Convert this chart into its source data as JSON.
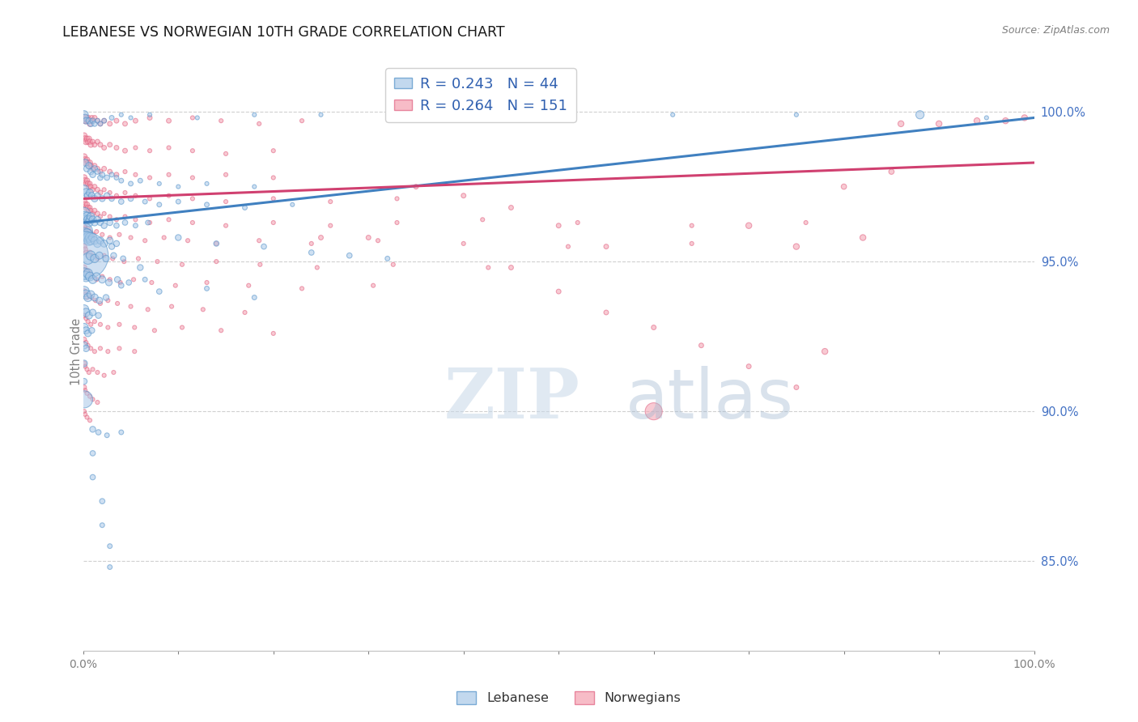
{
  "title": "LEBANESE VS NORWEGIAN 10TH GRADE CORRELATION CHART",
  "source": "Source: ZipAtlas.com",
  "ylabel": "10th Grade",
  "right_yticks": [
    85.0,
    90.0,
    95.0,
    100.0
  ],
  "blue_R": 0.243,
  "blue_N": 44,
  "pink_R": 0.264,
  "pink_N": 151,
  "blue_color": "#a8c8e8",
  "pink_color": "#f4a0b0",
  "blue_edge_color": "#5090c8",
  "pink_edge_color": "#e06080",
  "blue_line_color": "#4080c0",
  "pink_line_color": "#d04070",
  "watermark_zip": "ZIP",
  "watermark_atlas": "atlas",
  "legend_label_blue": "Lebanese",
  "legend_label_pink": "Norwegians",
  "xlim": [
    0.0,
    1.0
  ],
  "ylim": [
    0.82,
    1.02
  ],
  "blue_trend": [
    0.0,
    1.0,
    0.963,
    0.998
  ],
  "pink_trend": [
    0.0,
    1.0,
    0.971,
    0.983
  ],
  "blue_points": [
    [
      0.001,
      0.999,
      12
    ],
    [
      0.002,
      0.998,
      10
    ],
    [
      0.003,
      0.997,
      9
    ],
    [
      0.006,
      0.997,
      8
    ],
    [
      0.008,
      0.996,
      8
    ],
    [
      0.01,
      0.997,
      7
    ],
    [
      0.012,
      0.996,
      7
    ],
    [
      0.015,
      0.997,
      6
    ],
    [
      0.018,
      0.996,
      6
    ],
    [
      0.022,
      0.997,
      6
    ],
    [
      0.03,
      0.998,
      6
    ],
    [
      0.04,
      0.999,
      5
    ],
    [
      0.05,
      0.998,
      5
    ],
    [
      0.07,
      0.999,
      5
    ],
    [
      0.12,
      0.998,
      5
    ],
    [
      0.18,
      0.999,
      5
    ],
    [
      0.25,
      0.999,
      5
    ],
    [
      0.35,
      0.999,
      5
    ],
    [
      0.5,
      0.999,
      5
    ],
    [
      0.62,
      0.999,
      5
    ],
    [
      0.75,
      0.999,
      5
    ],
    [
      0.88,
      0.999,
      12
    ],
    [
      0.95,
      0.998,
      5
    ],
    [
      0.002,
      0.983,
      10
    ],
    [
      0.004,
      0.981,
      9
    ],
    [
      0.006,
      0.982,
      9
    ],
    [
      0.008,
      0.98,
      8
    ],
    [
      0.01,
      0.979,
      8
    ],
    [
      0.012,
      0.981,
      8
    ],
    [
      0.015,
      0.98,
      7
    ],
    [
      0.018,
      0.978,
      7
    ],
    [
      0.02,
      0.979,
      7
    ],
    [
      0.025,
      0.978,
      7
    ],
    [
      0.03,
      0.979,
      6
    ],
    [
      0.035,
      0.978,
      6
    ],
    [
      0.04,
      0.977,
      6
    ],
    [
      0.05,
      0.976,
      6
    ],
    [
      0.06,
      0.977,
      6
    ],
    [
      0.08,
      0.976,
      5
    ],
    [
      0.1,
      0.975,
      5
    ],
    [
      0.13,
      0.976,
      5
    ],
    [
      0.18,
      0.975,
      5
    ],
    [
      0.001,
      0.974,
      14
    ],
    [
      0.003,
      0.973,
      12
    ],
    [
      0.005,
      0.972,
      10
    ],
    [
      0.007,
      0.973,
      10
    ],
    [
      0.009,
      0.972,
      9
    ],
    [
      0.012,
      0.971,
      9
    ],
    [
      0.015,
      0.972,
      8
    ],
    [
      0.02,
      0.971,
      8
    ],
    [
      0.025,
      0.972,
      8
    ],
    [
      0.03,
      0.971,
      7
    ],
    [
      0.04,
      0.97,
      7
    ],
    [
      0.05,
      0.971,
      7
    ],
    [
      0.065,
      0.97,
      6
    ],
    [
      0.08,
      0.969,
      6
    ],
    [
      0.1,
      0.97,
      6
    ],
    [
      0.13,
      0.969,
      6
    ],
    [
      0.17,
      0.968,
      6
    ],
    [
      0.22,
      0.969,
      5
    ],
    [
      0.001,
      0.966,
      20
    ],
    [
      0.002,
      0.965,
      16
    ],
    [
      0.003,
      0.964,
      14
    ],
    [
      0.004,
      0.965,
      13
    ],
    [
      0.005,
      0.964,
      12
    ],
    [
      0.006,
      0.963,
      12
    ],
    [
      0.007,
      0.964,
      11
    ],
    [
      0.008,
      0.965,
      11
    ],
    [
      0.01,
      0.964,
      10
    ],
    [
      0.012,
      0.963,
      9
    ],
    [
      0.015,
      0.964,
      9
    ],
    [
      0.018,
      0.963,
      8
    ],
    [
      0.022,
      0.962,
      8
    ],
    [
      0.028,
      0.963,
      8
    ],
    [
      0.035,
      0.962,
      7
    ],
    [
      0.044,
      0.963,
      7
    ],
    [
      0.055,
      0.962,
      6
    ],
    [
      0.068,
      0.963,
      6
    ],
    [
      0.001,
      0.96,
      30
    ],
    [
      0.002,
      0.959,
      22
    ],
    [
      0.003,
      0.958,
      20
    ],
    [
      0.004,
      0.959,
      18
    ],
    [
      0.005,
      0.958,
      16
    ],
    [
      0.006,
      0.957,
      15
    ],
    [
      0.007,
      0.958,
      14
    ],
    [
      0.008,
      0.957,
      13
    ],
    [
      0.01,
      0.958,
      12
    ],
    [
      0.012,
      0.957,
      11
    ],
    [
      0.015,
      0.956,
      11
    ],
    [
      0.018,
      0.957,
      10
    ],
    [
      0.022,
      0.956,
      10
    ],
    [
      0.028,
      0.957,
      9
    ],
    [
      0.035,
      0.956,
      8
    ],
    [
      0.001,
      0.952,
      110
    ],
    [
      0.005,
      0.951,
      18
    ],
    [
      0.008,
      0.952,
      14
    ],
    [
      0.012,
      0.951,
      12
    ],
    [
      0.017,
      0.952,
      10
    ],
    [
      0.024,
      0.951,
      9
    ],
    [
      0.032,
      0.952,
      8
    ],
    [
      0.042,
      0.951,
      7
    ],
    [
      0.001,
      0.946,
      18
    ],
    [
      0.003,
      0.945,
      16
    ],
    [
      0.005,
      0.946,
      14
    ],
    [
      0.007,
      0.945,
      13
    ],
    [
      0.01,
      0.944,
      12
    ],
    [
      0.014,
      0.945,
      11
    ],
    [
      0.02,
      0.944,
      10
    ],
    [
      0.027,
      0.943,
      9
    ],
    [
      0.036,
      0.944,
      8
    ],
    [
      0.048,
      0.943,
      7
    ],
    [
      0.065,
      0.944,
      6
    ],
    [
      0.001,
      0.94,
      16
    ],
    [
      0.003,
      0.939,
      14
    ],
    [
      0.005,
      0.938,
      12
    ],
    [
      0.008,
      0.939,
      11
    ],
    [
      0.012,
      0.938,
      10
    ],
    [
      0.017,
      0.937,
      9
    ],
    [
      0.024,
      0.938,
      8
    ],
    [
      0.001,
      0.934,
      14
    ],
    [
      0.003,
      0.933,
      12
    ],
    [
      0.006,
      0.932,
      10
    ],
    [
      0.01,
      0.933,
      9
    ],
    [
      0.016,
      0.932,
      8
    ],
    [
      0.001,
      0.928,
      12
    ],
    [
      0.003,
      0.927,
      10
    ],
    [
      0.005,
      0.926,
      9
    ],
    [
      0.009,
      0.927,
      8
    ],
    [
      0.001,
      0.922,
      10
    ],
    [
      0.003,
      0.921,
      9
    ],
    [
      0.001,
      0.916,
      9
    ],
    [
      0.001,
      0.91,
      8
    ],
    [
      0.001,
      0.904,
      30
    ],
    [
      0.03,
      0.955,
      8
    ],
    [
      0.06,
      0.948,
      8
    ],
    [
      0.1,
      0.958,
      8
    ],
    [
      0.14,
      0.956,
      7
    ],
    [
      0.19,
      0.955,
      7
    ],
    [
      0.04,
      0.942,
      7
    ],
    [
      0.08,
      0.94,
      7
    ],
    [
      0.13,
      0.941,
      6
    ],
    [
      0.18,
      0.938,
      6
    ],
    [
      0.24,
      0.953,
      7
    ],
    [
      0.28,
      0.952,
      7
    ],
    [
      0.32,
      0.951,
      6
    ],
    [
      0.01,
      0.894,
      8
    ],
    [
      0.016,
      0.893,
      7
    ],
    [
      0.025,
      0.892,
      6
    ],
    [
      0.04,
      0.893,
      6
    ],
    [
      0.01,
      0.886,
      7
    ],
    [
      0.01,
      0.878,
      7
    ],
    [
      0.02,
      0.87,
      7
    ],
    [
      0.02,
      0.862,
      6
    ],
    [
      0.028,
      0.855,
      6
    ],
    [
      0.028,
      0.848,
      6
    ]
  ],
  "pink_points": [
    [
      0.001,
      0.998,
      8
    ],
    [
      0.002,
      0.997,
      8
    ],
    [
      0.003,
      0.998,
      7
    ],
    [
      0.004,
      0.997,
      7
    ],
    [
      0.005,
      0.998,
      7
    ],
    [
      0.006,
      0.997,
      7
    ],
    [
      0.007,
      0.996,
      7
    ],
    [
      0.008,
      0.997,
      6
    ],
    [
      0.009,
      0.998,
      6
    ],
    [
      0.01,
      0.997,
      6
    ],
    [
      0.012,
      0.998,
      6
    ],
    [
      0.015,
      0.997,
      6
    ],
    [
      0.018,
      0.996,
      6
    ],
    [
      0.022,
      0.997,
      6
    ],
    [
      0.028,
      0.996,
      6
    ],
    [
      0.035,
      0.997,
      6
    ],
    [
      0.044,
      0.996,
      6
    ],
    [
      0.055,
      0.997,
      6
    ],
    [
      0.07,
      0.998,
      6
    ],
    [
      0.09,
      0.997,
      6
    ],
    [
      0.115,
      0.998,
      5
    ],
    [
      0.145,
      0.997,
      5
    ],
    [
      0.185,
      0.996,
      5
    ],
    [
      0.23,
      0.997,
      5
    ],
    [
      0.001,
      0.992,
      8
    ],
    [
      0.002,
      0.991,
      8
    ],
    [
      0.003,
      0.99,
      8
    ],
    [
      0.004,
      0.991,
      7
    ],
    [
      0.005,
      0.99,
      7
    ],
    [
      0.006,
      0.991,
      7
    ],
    [
      0.007,
      0.99,
      7
    ],
    [
      0.008,
      0.989,
      7
    ],
    [
      0.01,
      0.99,
      6
    ],
    [
      0.012,
      0.989,
      6
    ],
    [
      0.015,
      0.99,
      6
    ],
    [
      0.018,
      0.989,
      6
    ],
    [
      0.022,
      0.988,
      6
    ],
    [
      0.028,
      0.989,
      6
    ],
    [
      0.035,
      0.988,
      6
    ],
    [
      0.044,
      0.987,
      6
    ],
    [
      0.055,
      0.988,
      5
    ],
    [
      0.07,
      0.987,
      5
    ],
    [
      0.09,
      0.988,
      5
    ],
    [
      0.115,
      0.987,
      5
    ],
    [
      0.15,
      0.986,
      5
    ],
    [
      0.2,
      0.987,
      5
    ],
    [
      0.001,
      0.985,
      8
    ],
    [
      0.002,
      0.984,
      8
    ],
    [
      0.003,
      0.983,
      8
    ],
    [
      0.004,
      0.984,
      7
    ],
    [
      0.005,
      0.983,
      7
    ],
    [
      0.006,
      0.982,
      7
    ],
    [
      0.007,
      0.983,
      7
    ],
    [
      0.008,
      0.982,
      7
    ],
    [
      0.01,
      0.981,
      6
    ],
    [
      0.012,
      0.982,
      6
    ],
    [
      0.015,
      0.981,
      6
    ],
    [
      0.018,
      0.98,
      6
    ],
    [
      0.022,
      0.981,
      6
    ],
    [
      0.028,
      0.98,
      6
    ],
    [
      0.035,
      0.979,
      6
    ],
    [
      0.044,
      0.98,
      5
    ],
    [
      0.055,
      0.979,
      5
    ],
    [
      0.07,
      0.978,
      5
    ],
    [
      0.09,
      0.979,
      5
    ],
    [
      0.115,
      0.978,
      5
    ],
    [
      0.15,
      0.979,
      5
    ],
    [
      0.2,
      0.978,
      5
    ],
    [
      0.001,
      0.978,
      8
    ],
    [
      0.002,
      0.977,
      8
    ],
    [
      0.003,
      0.976,
      7
    ],
    [
      0.004,
      0.977,
      7
    ],
    [
      0.005,
      0.976,
      7
    ],
    [
      0.006,
      0.975,
      7
    ],
    [
      0.007,
      0.976,
      6
    ],
    [
      0.008,
      0.975,
      6
    ],
    [
      0.01,
      0.974,
      6
    ],
    [
      0.012,
      0.975,
      6
    ],
    [
      0.015,
      0.974,
      6
    ],
    [
      0.018,
      0.973,
      6
    ],
    [
      0.022,
      0.974,
      5
    ],
    [
      0.028,
      0.973,
      5
    ],
    [
      0.035,
      0.972,
      5
    ],
    [
      0.044,
      0.973,
      5
    ],
    [
      0.055,
      0.972,
      5
    ],
    [
      0.07,
      0.971,
      5
    ],
    [
      0.09,
      0.972,
      5
    ],
    [
      0.115,
      0.971,
      5
    ],
    [
      0.15,
      0.97,
      5
    ],
    [
      0.2,
      0.971,
      5
    ],
    [
      0.26,
      0.97,
      5
    ],
    [
      0.33,
      0.971,
      5
    ],
    [
      0.001,
      0.97,
      8
    ],
    [
      0.002,
      0.969,
      8
    ],
    [
      0.003,
      0.968,
      7
    ],
    [
      0.004,
      0.969,
      7
    ],
    [
      0.005,
      0.968,
      7
    ],
    [
      0.006,
      0.967,
      7
    ],
    [
      0.007,
      0.968,
      6
    ],
    [
      0.008,
      0.967,
      6
    ],
    [
      0.01,
      0.966,
      6
    ],
    [
      0.012,
      0.967,
      6
    ],
    [
      0.015,
      0.966,
      6
    ],
    [
      0.018,
      0.965,
      5
    ],
    [
      0.022,
      0.966,
      5
    ],
    [
      0.028,
      0.965,
      5
    ],
    [
      0.035,
      0.964,
      5
    ],
    [
      0.044,
      0.965,
      5
    ],
    [
      0.055,
      0.964,
      5
    ],
    [
      0.07,
      0.963,
      5
    ],
    [
      0.09,
      0.964,
      5
    ],
    [
      0.115,
      0.963,
      5
    ],
    [
      0.15,
      0.962,
      5
    ],
    [
      0.2,
      0.963,
      5
    ],
    [
      0.26,
      0.962,
      5
    ],
    [
      0.33,
      0.963,
      5
    ],
    [
      0.42,
      0.964,
      5
    ],
    [
      0.52,
      0.963,
      5
    ],
    [
      0.64,
      0.962,
      5
    ],
    [
      0.76,
      0.963,
      5
    ],
    [
      0.001,
      0.962,
      8
    ],
    [
      0.002,
      0.961,
      7
    ],
    [
      0.003,
      0.96,
      7
    ],
    [
      0.005,
      0.961,
      6
    ],
    [
      0.007,
      0.96,
      6
    ],
    [
      0.01,
      0.959,
      6
    ],
    [
      0.014,
      0.96,
      5
    ],
    [
      0.02,
      0.959,
      5
    ],
    [
      0.028,
      0.958,
      5
    ],
    [
      0.038,
      0.959,
      5
    ],
    [
      0.05,
      0.958,
      5
    ],
    [
      0.065,
      0.957,
      5
    ],
    [
      0.085,
      0.958,
      5
    ],
    [
      0.11,
      0.957,
      5
    ],
    [
      0.14,
      0.956,
      5
    ],
    [
      0.185,
      0.957,
      5
    ],
    [
      0.24,
      0.956,
      5
    ],
    [
      0.31,
      0.957,
      5
    ],
    [
      0.4,
      0.956,
      5
    ],
    [
      0.51,
      0.955,
      5
    ],
    [
      0.64,
      0.956,
      5
    ],
    [
      0.001,
      0.955,
      7
    ],
    [
      0.002,
      0.954,
      7
    ],
    [
      0.003,
      0.953,
      6
    ],
    [
      0.005,
      0.952,
      6
    ],
    [
      0.007,
      0.953,
      6
    ],
    [
      0.01,
      0.952,
      5
    ],
    [
      0.015,
      0.951,
      5
    ],
    [
      0.022,
      0.952,
      5
    ],
    [
      0.031,
      0.951,
      5
    ],
    [
      0.043,
      0.95,
      5
    ],
    [
      0.058,
      0.951,
      5
    ],
    [
      0.078,
      0.95,
      5
    ],
    [
      0.104,
      0.949,
      5
    ],
    [
      0.14,
      0.95,
      5
    ],
    [
      0.186,
      0.949,
      5
    ],
    [
      0.246,
      0.948,
      5
    ],
    [
      0.326,
      0.949,
      5
    ],
    [
      0.426,
      0.948,
      5
    ],
    [
      0.001,
      0.948,
      7
    ],
    [
      0.002,
      0.947,
      6
    ],
    [
      0.003,
      0.946,
      6
    ],
    [
      0.005,
      0.947,
      5
    ],
    [
      0.007,
      0.946,
      5
    ],
    [
      0.01,
      0.945,
      5
    ],
    [
      0.014,
      0.944,
      5
    ],
    [
      0.02,
      0.945,
      5
    ],
    [
      0.028,
      0.944,
      5
    ],
    [
      0.039,
      0.943,
      5
    ],
    [
      0.053,
      0.944,
      5
    ],
    [
      0.072,
      0.943,
      5
    ],
    [
      0.097,
      0.942,
      5
    ],
    [
      0.13,
      0.943,
      5
    ],
    [
      0.174,
      0.942,
      5
    ],
    [
      0.23,
      0.941,
      5
    ],
    [
      0.305,
      0.942,
      5
    ],
    [
      0.001,
      0.94,
      7
    ],
    [
      0.002,
      0.939,
      6
    ],
    [
      0.004,
      0.938,
      5
    ],
    [
      0.006,
      0.939,
      5
    ],
    [
      0.009,
      0.938,
      5
    ],
    [
      0.013,
      0.937,
      5
    ],
    [
      0.018,
      0.936,
      5
    ],
    [
      0.026,
      0.937,
      5
    ],
    [
      0.036,
      0.936,
      5
    ],
    [
      0.05,
      0.935,
      5
    ],
    [
      0.068,
      0.934,
      5
    ],
    [
      0.093,
      0.935,
      5
    ],
    [
      0.126,
      0.934,
      5
    ],
    [
      0.17,
      0.933,
      5
    ],
    [
      0.001,
      0.932,
      6
    ],
    [
      0.003,
      0.931,
      5
    ],
    [
      0.005,
      0.93,
      5
    ],
    [
      0.008,
      0.929,
      5
    ],
    [
      0.012,
      0.93,
      5
    ],
    [
      0.018,
      0.929,
      5
    ],
    [
      0.026,
      0.928,
      5
    ],
    [
      0.038,
      0.929,
      5
    ],
    [
      0.054,
      0.928,
      5
    ],
    [
      0.075,
      0.927,
      5
    ],
    [
      0.104,
      0.928,
      5
    ],
    [
      0.145,
      0.927,
      5
    ],
    [
      0.2,
      0.926,
      5
    ],
    [
      0.001,
      0.924,
      6
    ],
    [
      0.003,
      0.923,
      5
    ],
    [
      0.005,
      0.922,
      5
    ],
    [
      0.008,
      0.921,
      5
    ],
    [
      0.012,
      0.92,
      5
    ],
    [
      0.018,
      0.921,
      5
    ],
    [
      0.026,
      0.92,
      5
    ],
    [
      0.038,
      0.921,
      5
    ],
    [
      0.054,
      0.92,
      5
    ],
    [
      0.001,
      0.916,
      6
    ],
    [
      0.002,
      0.915,
      5
    ],
    [
      0.004,
      0.914,
      5
    ],
    [
      0.006,
      0.913,
      5
    ],
    [
      0.01,
      0.914,
      5
    ],
    [
      0.015,
      0.913,
      5
    ],
    [
      0.022,
      0.912,
      5
    ],
    [
      0.032,
      0.913,
      5
    ],
    [
      0.001,
      0.908,
      6
    ],
    [
      0.002,
      0.907,
      5
    ],
    [
      0.004,
      0.906,
      5
    ],
    [
      0.007,
      0.905,
      5
    ],
    [
      0.01,
      0.904,
      5
    ],
    [
      0.015,
      0.903,
      5
    ],
    [
      0.001,
      0.9,
      5
    ],
    [
      0.002,
      0.899,
      5
    ],
    [
      0.004,
      0.898,
      5
    ],
    [
      0.007,
      0.897,
      5
    ],
    [
      0.6,
      0.9,
      30
    ],
    [
      0.78,
      0.92,
      8
    ],
    [
      0.75,
      0.955,
      8
    ],
    [
      0.82,
      0.958,
      8
    ],
    [
      0.86,
      0.996,
      8
    ],
    [
      0.9,
      0.996,
      8
    ],
    [
      0.94,
      0.997,
      8
    ],
    [
      0.97,
      0.997,
      8
    ],
    [
      0.99,
      0.998,
      8
    ],
    [
      0.7,
      0.962,
      8
    ],
    [
      0.8,
      0.975,
      7
    ],
    [
      0.85,
      0.98,
      7
    ],
    [
      0.25,
      0.958,
      6
    ],
    [
      0.3,
      0.958,
      6
    ],
    [
      0.35,
      0.975,
      6
    ],
    [
      0.4,
      0.972,
      6
    ],
    [
      0.45,
      0.968,
      6
    ],
    [
      0.5,
      0.962,
      6
    ],
    [
      0.55,
      0.955,
      6
    ],
    [
      0.45,
      0.948,
      6
    ],
    [
      0.5,
      0.94,
      6
    ],
    [
      0.55,
      0.933,
      6
    ],
    [
      0.6,
      0.928,
      6
    ],
    [
      0.65,
      0.922,
      6
    ],
    [
      0.7,
      0.915,
      6
    ],
    [
      0.75,
      0.908,
      6
    ]
  ]
}
